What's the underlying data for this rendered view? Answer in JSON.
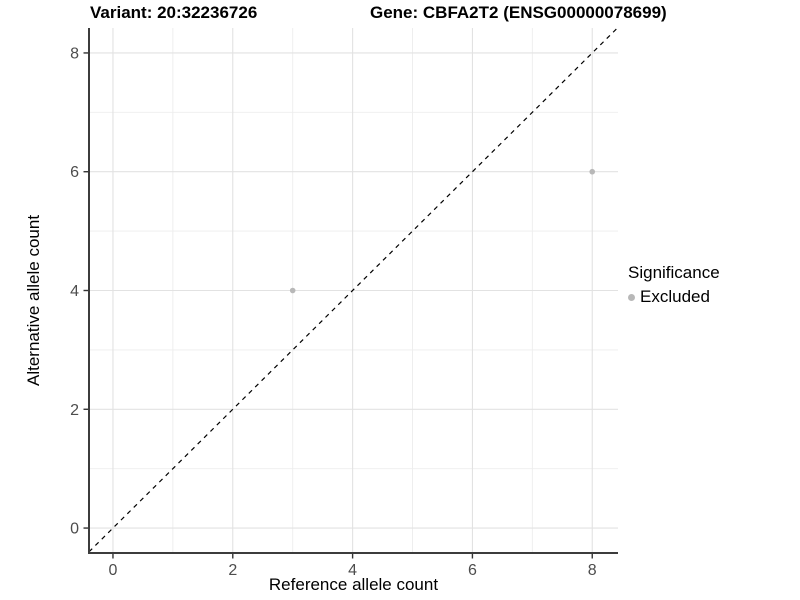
{
  "chart_data": {
    "type": "scatter",
    "title_left": "Variant: 20:32236726",
    "title_right": "Gene: CBFA2T2 (ENSG00000078699)",
    "xlabel": "Reference allele count",
    "ylabel": "Alternative allele count",
    "xlim": [
      -0.4,
      8.43
    ],
    "ylim": [
      -0.42,
      8.42
    ],
    "x_ticks": [
      0,
      2,
      4,
      6,
      8
    ],
    "y_ticks": [
      0,
      2,
      4,
      6,
      8
    ],
    "x_minor_ticks": [
      1,
      3,
      5,
      7
    ],
    "y_minor_ticks": [
      1,
      3,
      5,
      7
    ],
    "grid": true,
    "identity_line": {
      "slope": 1,
      "intercept": 0,
      "style": "dashed",
      "color": "#000000"
    },
    "series": [
      {
        "name": "Excluded",
        "color": "#b8b8b8",
        "points": [
          {
            "x": 3,
            "y": 4
          },
          {
            "x": 8,
            "y": 6
          }
        ]
      }
    ],
    "legend": {
      "title": "Significance",
      "position": "right",
      "items": [
        {
          "label": "Excluded",
          "color": "#b8b8b8"
        }
      ]
    },
    "colors": {
      "major_grid": "#e2e2e2",
      "minor_grid": "#ededed",
      "axis_line": "#3c3c3c",
      "tick_mark": "#333333",
      "tick_label": "#4d4d4d"
    }
  }
}
